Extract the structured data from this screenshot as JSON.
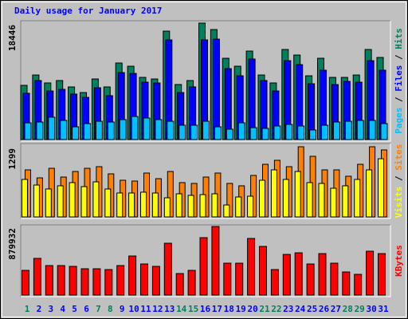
{
  "chart_data": [
    {
      "type": "bar",
      "title": "Daily usage for January 2017",
      "legend_separator": "/",
      "ylim": [
        0,
        18446
      ],
      "yticks": [
        18446
      ],
      "series": [
        {
          "name": "Hits",
          "color": "#00805c",
          "values": [
            8590,
            10230,
            8970,
            9350,
            8340,
            7450,
            9600,
            8340,
            12130,
            11620,
            9850,
            9600,
            17180,
            8720,
            9350,
            18446,
            17430,
            12880,
            11620,
            14020,
            10230,
            8970,
            14270,
            13390,
            10100,
            12880,
            9850,
            9850,
            10230,
            14270,
            13010
          ]
        },
        {
          "name": "Files",
          "color": "#0000ff",
          "values": [
            7330,
            9350,
            7700,
            7960,
            7200,
            6690,
            8210,
            6950,
            10610,
            10480,
            9090,
            8970,
            15790,
            7450,
            8340,
            15790,
            15910,
            11240,
            10100,
            12760,
            9350,
            7700,
            12500,
            11870,
            8840,
            10990,
            8720,
            9220,
            9090,
            12500,
            10990
          ]
        },
        {
          "name": "Pages",
          "color": "#00c0ff",
          "values": [
            2650,
            2780,
            3540,
            3030,
            2020,
            2530,
            2900,
            2780,
            3160,
            3660,
            3410,
            3160,
            2900,
            2270,
            2270,
            2900,
            2020,
            1640,
            2650,
            1890,
            1770,
            2150,
            2400,
            2150,
            1520,
            2270,
            2780,
            2900,
            3030,
            3030,
            2530
          ]
        }
      ]
    },
    {
      "type": "bar",
      "legend_separator": "/",
      "ylim": [
        0,
        1299
      ],
      "yticks": [
        1299
      ],
      "series": [
        {
          "name": "Sites",
          "color": "#ff8000",
          "values": [
            871,
            723,
            900,
            738,
            841,
            900,
            930,
            797,
            679,
            664,
            812,
            708,
            841,
            635,
            620,
            738,
            812,
            620,
            576,
            768,
            974,
            1048,
            930,
            1299,
            1122,
            871,
            871,
            753,
            974,
            1299,
            1240
          ]
        },
        {
          "name": "Visits",
          "color": "#ffff00",
          "values": [
            694,
            590,
            517,
            576,
            635,
            561,
            649,
            517,
            443,
            443,
            458,
            443,
            354,
            428,
            399,
            413,
            428,
            221,
            369,
            384,
            679,
            871,
            694,
            841,
            635,
            620,
            531,
            576,
            694,
            871,
            1077
          ]
        }
      ]
    },
    {
      "type": "bar",
      "ylim": [
        0,
        879932
      ],
      "yticks": [
        879932
      ],
      "categories": [
        "1",
        "2",
        "3",
        "4",
        "5",
        "6",
        "7",
        "8",
        "9",
        "10",
        "11",
        "12",
        "13",
        "14",
        "15",
        "16",
        "17",
        "18",
        "19",
        "20",
        "21",
        "22",
        "23",
        "24",
        "25",
        "26",
        "27",
        "28",
        "29",
        "30",
        "31"
      ],
      "category_colors": [
        "#00805c",
        "#0000ff",
        "#0000ff",
        "#0000ff",
        "#0000ff",
        "#0000ff",
        "#00805c",
        "#00805c",
        "#0000ff",
        "#0000ff",
        "#0000ff",
        "#0000ff",
        "#0000ff",
        "#00805c",
        "#00805c",
        "#0000ff",
        "#0000ff",
        "#0000ff",
        "#0000ff",
        "#0000ff",
        "#00805c",
        "#00805c",
        "#0000ff",
        "#0000ff",
        "#0000ff",
        "#0000ff",
        "#0000ff",
        "#00805c",
        "#00805c",
        "#0000ff",
        "#0000ff"
      ],
      "series": [
        {
          "name": "KBytes",
          "color": "#ff0000",
          "values": [
            317190,
            470670,
            378580,
            378580,
            368350,
            337660,
            337660,
            327420,
            378580,
            501370,
            399050,
            368350,
            665080,
            276260,
            317190,
            736700,
            879932,
            409280,
            409280,
            726470,
            624150,
            327420,
            521830,
            542300,
            399050,
            532060,
            409280,
            296730,
            266030,
            562760,
            532060
          ]
        }
      ]
    }
  ]
}
